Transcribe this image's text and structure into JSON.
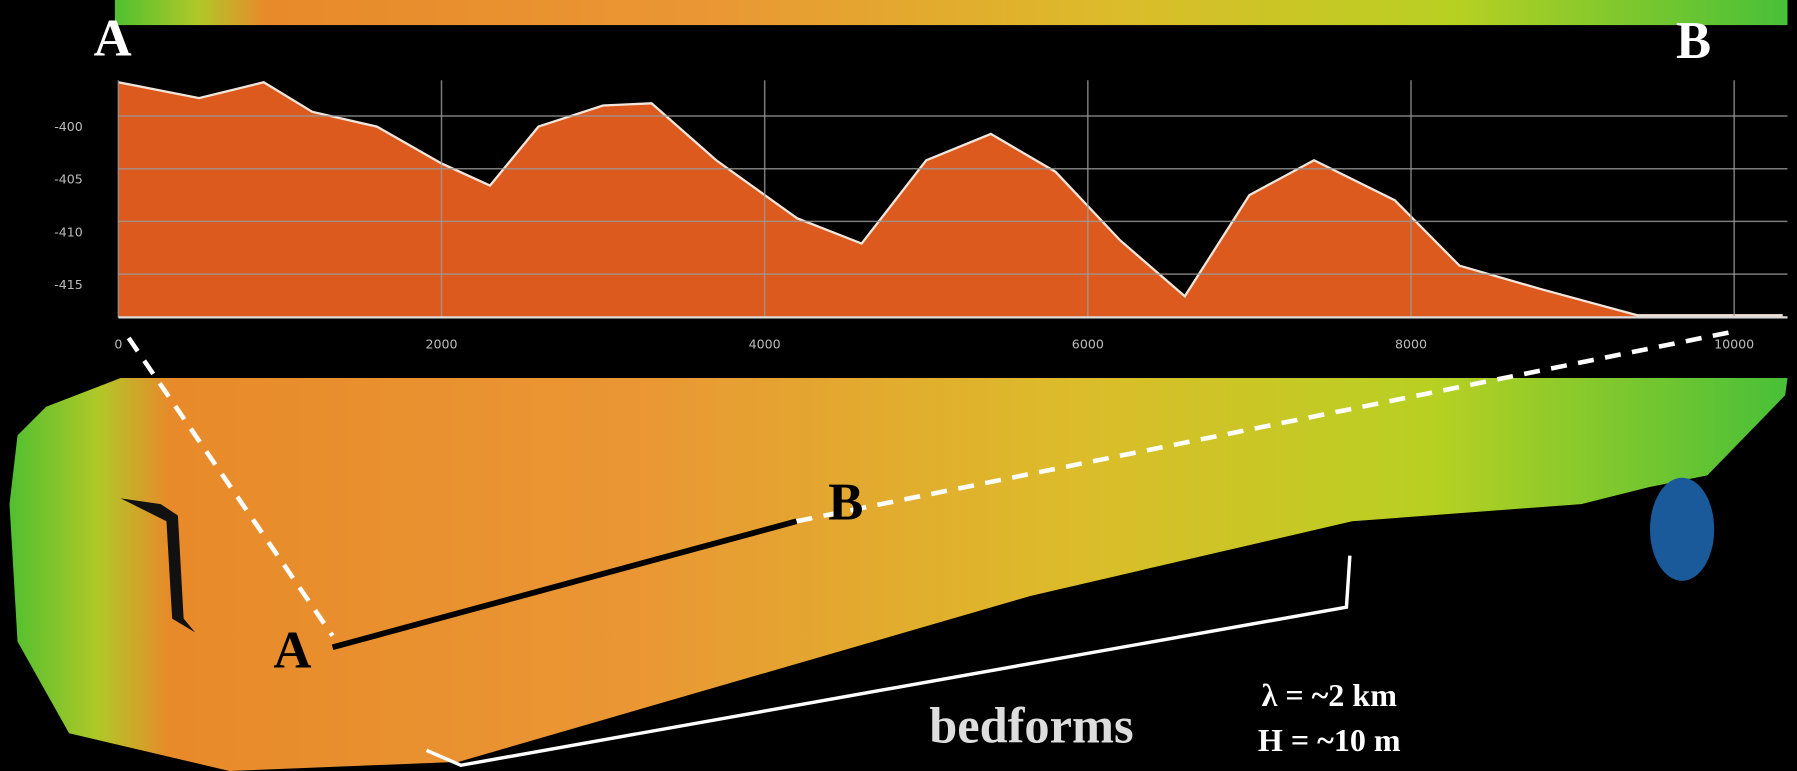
{
  "chart_data": {
    "type": "area",
    "x": [
      0,
      500,
      900,
      1200,
      1600,
      2000,
      2300,
      2600,
      3000,
      3300,
      3700,
      4200,
      4600,
      5000,
      5400,
      5800,
      6200,
      6600,
      7000,
      7400,
      7900,
      8300,
      8800,
      9400,
      10000,
      10300
    ],
    "values": [
      -396.8,
      -398.3,
      -396.8,
      -399.6,
      -401.0,
      -404.5,
      -406.6,
      -401.0,
      -399.0,
      -398.8,
      -404.2,
      -409.7,
      -412.1,
      -404.2,
      -401.7,
      -405.3,
      -411.8,
      -417.1,
      -407.5,
      -404.2,
      -408.0,
      -414.2,
      -416.4,
      -418.9,
      -418.9,
      -418.9
    ],
    "color": "#dd5a1e",
    "xlim": [
      0,
      10330
    ],
    "ylim": [
      -419.1,
      -396.6
    ],
    "xticks": [
      0,
      2000,
      4000,
      6000,
      8000,
      10000
    ],
    "yticks": [
      -400,
      -405,
      -410,
      -415
    ],
    "grid": true,
    "annotations": {
      "profile_start": "A",
      "profile_end": "B",
      "map_start": "A",
      "map_end": "B",
      "feature": "bedforms",
      "wavelength": "λ = ~2 km",
      "height": "H = ~10 m"
    }
  }
}
